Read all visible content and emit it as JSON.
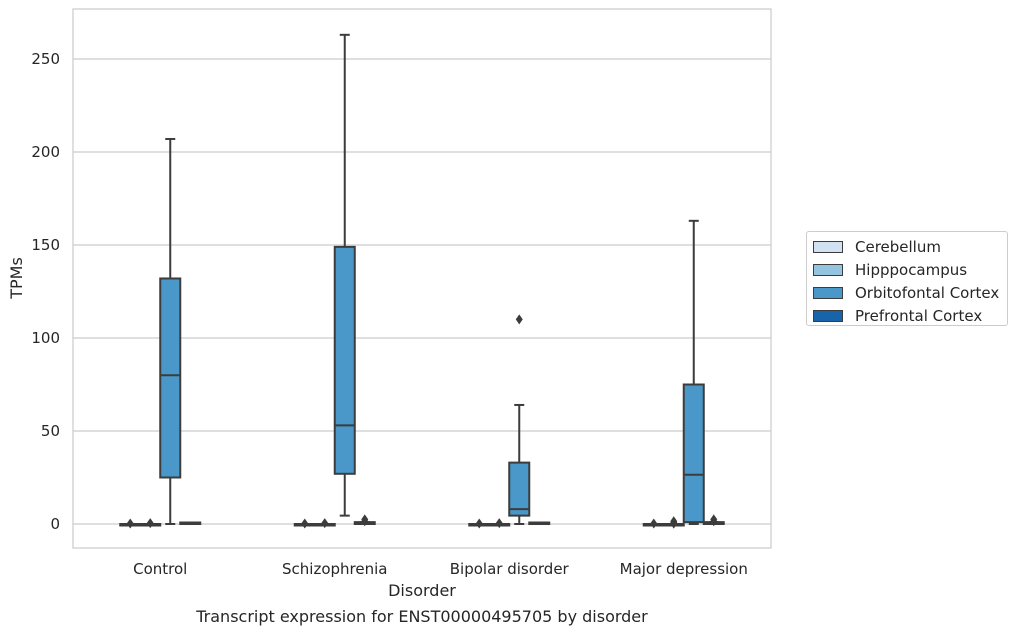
{
  "chart_data": {
    "type": "boxplot",
    "title": "Transcript expression for ENST00000495705 by disorder",
    "xlabel": "Disorder",
    "ylabel": "TPMs",
    "categories": [
      "Control",
      "Schizophrenia",
      "Bipolar disorder",
      "Major depression"
    ],
    "yticks": [
      0,
      50,
      100,
      150,
      200,
      250
    ],
    "ylim": [
      -13,
      278
    ],
    "grid": true,
    "legend_position": "right",
    "series": [
      {
        "name": "Cerebellum",
        "color": "#d0e1f2",
        "boxes": [
          {
            "whisker_low": 0,
            "q1": 0,
            "median": 0,
            "q3": 0,
            "whisker_high": 0,
            "outliers": [
              0.3
            ]
          },
          {
            "whisker_low": 0,
            "q1": 0,
            "median": 0,
            "q3": 0,
            "whisker_high": 0,
            "outliers": [
              0.3
            ]
          },
          {
            "whisker_low": 0,
            "q1": 0,
            "median": 0,
            "q3": 0,
            "whisker_high": 0,
            "outliers": [
              0.3
            ]
          },
          {
            "whisker_low": 0,
            "q1": 0,
            "median": 0,
            "q3": 0,
            "whisker_high": 0,
            "outliers": [
              0.3
            ]
          }
        ]
      },
      {
        "name": "Hipppocampus",
        "color": "#94c4df",
        "boxes": [
          {
            "whisker_low": 0,
            "q1": 0,
            "median": 0,
            "q3": 0,
            "whisker_high": 0,
            "outliers": [
              0.5
            ]
          },
          {
            "whisker_low": 0,
            "q1": 0,
            "median": 0,
            "q3": 0,
            "whisker_high": 0,
            "outliers": [
              0.5
            ]
          },
          {
            "whisker_low": 0,
            "q1": 0,
            "median": 0,
            "q3": 0,
            "whisker_high": 0,
            "outliers": [
              0.5
            ]
          },
          {
            "whisker_low": 0,
            "q1": 0,
            "median": 0,
            "q3": 0,
            "whisker_high": 0,
            "outliers": [
              0.2,
              0.8,
              1.5
            ]
          }
        ]
      },
      {
        "name": "Orbitofontal Cortex",
        "color": "#4a98c9",
        "boxes": [
          {
            "whisker_low": 0,
            "q1": 25,
            "median": 80,
            "q3": 132,
            "whisker_high": 207,
            "outliers": []
          },
          {
            "whisker_low": 4.5,
            "q1": 27,
            "median": 53,
            "q3": 149,
            "whisker_high": 263,
            "outliers": []
          },
          {
            "whisker_low": 0,
            "q1": 4.5,
            "median": 8,
            "q3": 33,
            "whisker_high": 64,
            "outliers": [
              110
            ]
          },
          {
            "whisker_low": 0,
            "q1": 1,
            "median": 26.5,
            "q3": 75,
            "whisker_high": 163,
            "outliers": []
          }
        ]
      },
      {
        "name": "Prefrontal Cortex",
        "color": "#1764ab",
        "boxes": [
          {
            "whisker_low": 0,
            "q1": 0,
            "median": 0.3,
            "q3": 0.8,
            "whisker_high": 0.8,
            "outliers": []
          },
          {
            "whisker_low": 0,
            "q1": 0,
            "median": 0.5,
            "q3": 1,
            "whisker_high": 1,
            "outliers": [
              1.5,
              2.5
            ]
          },
          {
            "whisker_low": 0,
            "q1": 0,
            "median": 0.3,
            "q3": 0.8,
            "whisker_high": 0.8,
            "outliers": []
          },
          {
            "whisker_low": 0,
            "q1": 0,
            "median": 0.5,
            "q3": 1,
            "whisker_high": 1,
            "outliers": [
              1.5,
              2.5
            ]
          }
        ]
      }
    ]
  }
}
